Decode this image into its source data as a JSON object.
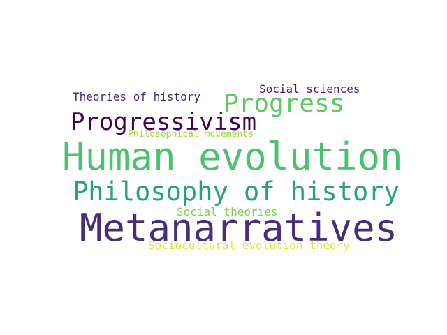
{
  "words": [
    {
      "text": "Theories of history",
      "color": "#482878"
    },
    {
      "text": "Social sciences",
      "color": "#481a6c"
    },
    {
      "text": "Progress",
      "color": "#5ec962"
    },
    {
      "text": "Progressivism",
      "color": "#440154"
    },
    {
      "text": "Philosophical movements",
      "color": "#a0da39"
    },
    {
      "text": "Human evolution",
      "color": "#4ac16d"
    },
    {
      "text": "Philosophy of history",
      "color": "#26a184"
    },
    {
      "text": "Social theories",
      "color": "#7ad151"
    },
    {
      "text": "Metanarratives",
      "color": "#472d7b"
    },
    {
      "text": "Sociocultural evolution theory",
      "color": "#e5e419"
    }
  ]
}
